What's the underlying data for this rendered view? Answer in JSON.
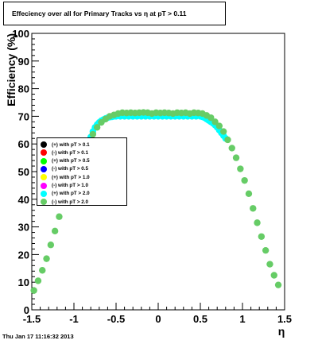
{
  "title_text": "Effeciency over all for Primary Tracks vs    η at pT > 0.11",
  "timestamp": "Thu Jan 17 11:16:32 2013",
  "colors": {
    "cyan": "#00ffff",
    "green": "#66cc66",
    "black": "#000000",
    "red": "#ff0000",
    "bright_green": "#00ff00",
    "blue": "#0000ff",
    "yellow": "#ffff00",
    "magenta": "#ff00ff"
  },
  "chart_data": {
    "type": "scatter",
    "title": "Effeciency over all for Primary Tracks vs    η at pT > 0.11",
    "xlabel": "η",
    "ylabel": "Efficiency (%)",
    "xlim": [
      -1.5,
      1.5
    ],
    "ylim": [
      0,
      100
    ],
    "x_ticks": [
      "-1.5",
      "-1",
      "-0.5",
      "0",
      "0.5",
      "1",
      "1.5"
    ],
    "y_ticks": [
      "0",
      "10",
      "20",
      "30",
      "40",
      "50",
      "60",
      "70",
      "80",
      "90",
      "100"
    ],
    "grid": false,
    "legend_placement": "left-center",
    "legend": [
      {
        "label": "(+) with pT > 0.1",
        "color": "#000000"
      },
      {
        "label": "(-) with pT > 0.1",
        "color": "#ff0000"
      },
      {
        "label": "(+) with pT > 0.5",
        "color": "#00ff00"
      },
      {
        "label": "(-) with pT > 0.5",
        "color": "#0000ff"
      },
      {
        "label": "(+) with pT > 1.0",
        "color": "#ffff00"
      },
      {
        "label": "(-) with pT > 1.0",
        "color": "#ff00ff"
      },
      {
        "label": "(+) with pT > 2.0",
        "color": "#00ffff"
      },
      {
        "label": "(-) with pT > 2.0",
        "color": "#66cc66"
      }
    ],
    "series": [
      {
        "name": "(+) with pT > 2.0",
        "color": "#00ffff",
        "points": [
          [
            -0.8,
            62.5
          ],
          [
            -0.775,
            64.5
          ],
          [
            -0.75,
            66.0
          ],
          [
            -0.725,
            67.0
          ],
          [
            -0.7,
            67.8
          ],
          [
            -0.675,
            68.4
          ],
          [
            -0.65,
            68.8
          ],
          [
            -0.625,
            69.2
          ],
          [
            -0.6,
            69.5
          ],
          [
            -0.575,
            69.7
          ],
          [
            -0.55,
            69.8
          ],
          [
            -0.525,
            70.0
          ],
          [
            -0.5,
            70.0
          ],
          [
            -0.45,
            70.0
          ],
          [
            -0.4,
            70.0
          ],
          [
            -0.35,
            70.0
          ],
          [
            -0.3,
            70.0
          ],
          [
            -0.25,
            70.0
          ],
          [
            -0.2,
            70.0
          ],
          [
            -0.15,
            70.0
          ],
          [
            -0.1,
            70.0
          ],
          [
            -0.05,
            70.0
          ],
          [
            0.0,
            70.0
          ],
          [
            0.05,
            70.0
          ],
          [
            0.1,
            70.0
          ],
          [
            0.15,
            70.0
          ],
          [
            0.2,
            70.0
          ],
          [
            0.25,
            70.0
          ],
          [
            0.3,
            70.0
          ],
          [
            0.35,
            70.0
          ],
          [
            0.4,
            70.0
          ],
          [
            0.45,
            70.0
          ],
          [
            0.5,
            70.0
          ],
          [
            0.525,
            69.8
          ],
          [
            0.55,
            69.5
          ],
          [
            0.575,
            69.0
          ],
          [
            0.6,
            68.5
          ],
          [
            0.625,
            68.0
          ],
          [
            0.65,
            67.5
          ],
          [
            0.675,
            66.8
          ],
          [
            0.7,
            66.0
          ],
          [
            0.725,
            65.0
          ],
          [
            0.75,
            64.0
          ],
          [
            0.775,
            63.0
          ],
          [
            0.8,
            62.0
          ]
        ]
      },
      {
        "name": "(-) with pT > 2.0",
        "color": "#66cc66",
        "points": [
          [
            -1.475,
            7.0
          ],
          [
            -1.425,
            10.5
          ],
          [
            -1.375,
            14.3
          ],
          [
            -1.325,
            18.5
          ],
          [
            -1.275,
            23.5
          ],
          [
            -1.225,
            28.5
          ],
          [
            -1.175,
            33.7
          ],
          [
            -0.825,
            60.5
          ],
          [
            -0.775,
            63.5
          ],
          [
            -0.725,
            66.0
          ],
          [
            -0.675,
            67.8
          ],
          [
            -0.625,
            69.0
          ],
          [
            -0.575,
            70.0
          ],
          [
            -0.525,
            70.5
          ],
          [
            -0.475,
            71.0
          ],
          [
            -0.425,
            71.3
          ],
          [
            -0.375,
            71.2
          ],
          [
            -0.325,
            71.3
          ],
          [
            -0.275,
            71.2
          ],
          [
            -0.225,
            71.3
          ],
          [
            -0.175,
            71.4
          ],
          [
            -0.125,
            71.3
          ],
          [
            -0.075,
            71.0
          ],
          [
            -0.025,
            71.3
          ],
          [
            0.025,
            71.2
          ],
          [
            0.075,
            71.3
          ],
          [
            0.125,
            71.2
          ],
          [
            0.175,
            71.0
          ],
          [
            0.225,
            71.3
          ],
          [
            0.275,
            71.2
          ],
          [
            0.325,
            71.3
          ],
          [
            0.375,
            71.0
          ],
          [
            0.425,
            71.3
          ],
          [
            0.475,
            71.2
          ],
          [
            0.525,
            71.0
          ],
          [
            0.575,
            70.3
          ],
          [
            0.625,
            69.5
          ],
          [
            0.675,
            68.0
          ],
          [
            0.725,
            66.5
          ],
          [
            0.775,
            64.5
          ],
          [
            0.825,
            61.5
          ],
          [
            0.875,
            58.5
          ],
          [
            0.925,
            55.0
          ],
          [
            0.975,
            51.0
          ],
          [
            1.025,
            46.8
          ],
          [
            1.075,
            42.0
          ],
          [
            1.125,
            36.7
          ],
          [
            1.175,
            31.5
          ],
          [
            1.225,
            26.5
          ],
          [
            1.275,
            21.5
          ],
          [
            1.325,
            16.5
          ],
          [
            1.375,
            12.5
          ],
          [
            1.425,
            9.0
          ]
        ]
      }
    ]
  }
}
